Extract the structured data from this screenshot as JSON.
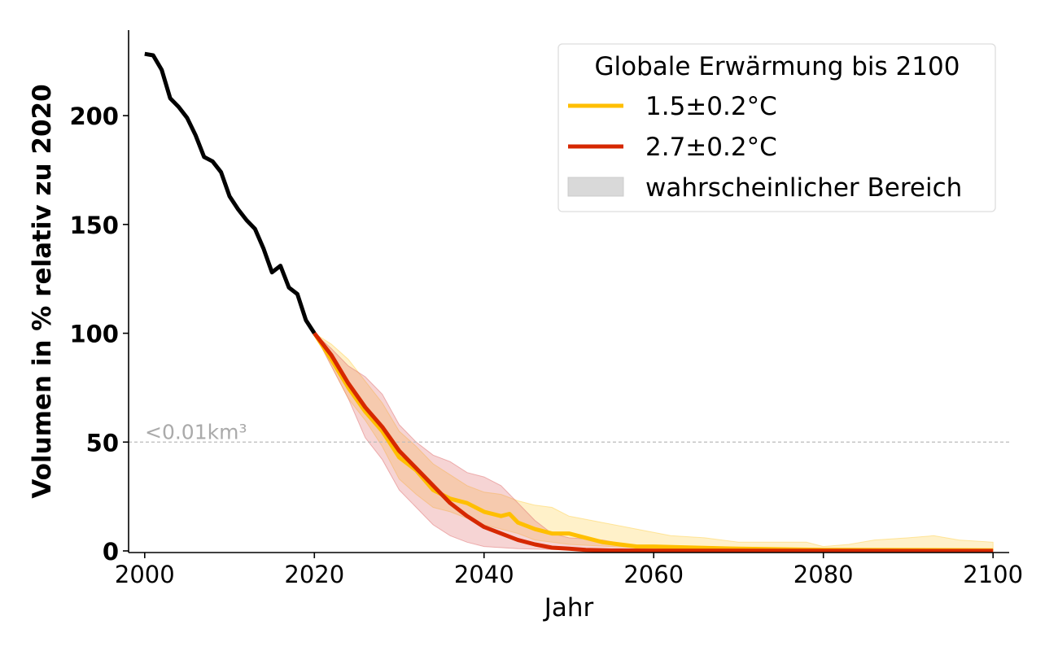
{
  "chart_data": {
    "type": "line",
    "xlabel": "Jahr",
    "ylabel": "Volumen in % relativ zu 2020",
    "xlim": [
      1998.1,
      2101.9
    ],
    "ylim": [
      -0.75,
      239.3
    ],
    "xticks": [
      2000,
      2020,
      2040,
      2060,
      2080,
      2100
    ],
    "yticks": [
      0,
      50,
      100,
      150,
      200
    ],
    "grid": false,
    "reference_line": {
      "y": 50,
      "label": "<0.01km³",
      "color": "#bbbbbb"
    },
    "legend": {
      "title": "Globale Erwärmung bis 2100",
      "placement": "top-right",
      "entries": [
        "1.5±0.2°C",
        "2.7±0.2°C",
        "wahrscheinlicher Bereich"
      ]
    },
    "historical": {
      "color": "#000000",
      "x": [
        2000,
        2001,
        2002,
        2003,
        2004,
        2005,
        2006,
        2007,
        2008,
        2009,
        2010,
        2011,
        2012,
        2013,
        2014,
        2015,
        2016,
        2017,
        2018,
        2019,
        2020
      ],
      "y": [
        228.4,
        227.7,
        221,
        208,
        204,
        199,
        191,
        181,
        179,
        174,
        163,
        157,
        152,
        148,
        139,
        128,
        131,
        121,
        118,
        106,
        100
      ]
    },
    "series": [
      {
        "name": "1.5±0.2°C",
        "color": "#FFBF00",
        "band_color": "#FFD24D",
        "x": [
          2020,
          2022,
          2024,
          2026,
          2028,
          2030,
          2032,
          2034,
          2036,
          2038,
          2040,
          2042,
          2043,
          2044,
          2046,
          2048,
          2050,
          2052,
          2054,
          2056,
          2058,
          2060,
          2065,
          2070,
          2080,
          2100
        ],
        "y": [
          100,
          88,
          75,
          64,
          55,
          43,
          37,
          28,
          24,
          22,
          18,
          16,
          17,
          13,
          10,
          8,
          8,
          6,
          4,
          3,
          2,
          2,
          1.5,
          1,
          0.5,
          0.3
        ],
        "upper": {
          "x": [
            2020,
            2022,
            2024,
            2026,
            2028,
            2030,
            2032,
            2034,
            2036,
            2038,
            2040,
            2042,
            2044,
            2046,
            2048,
            2050,
            2054,
            2058,
            2062,
            2066,
            2070,
            2078,
            2080,
            2083,
            2086,
            2090,
            2093,
            2096,
            2100
          ],
          "y": [
            100,
            95,
            88,
            78,
            68,
            55,
            48,
            40,
            35,
            30,
            27,
            26,
            23,
            21,
            20,
            16,
            13,
            10,
            7,
            6,
            4,
            4,
            2,
            3,
            5,
            6,
            7,
            5,
            4
          ]
        },
        "lower": {
          "x": [
            2020,
            2022,
            2024,
            2026,
            2028,
            2030,
            2032,
            2034,
            2036,
            2038,
            2040,
            2042,
            2044,
            2046,
            2048,
            2050,
            2055,
            2060,
            2100
          ],
          "y": [
            100,
            85,
            70,
            60,
            48,
            33,
            26,
            20,
            18,
            15,
            12,
            10,
            8,
            5,
            4,
            3,
            2,
            1,
            0.5
          ]
        }
      },
      {
        "name": "2.7±0.2°C",
        "color": "#D62800",
        "band_color": "#E07070",
        "x": [
          2020,
          2022,
          2024,
          2026,
          2028,
          2030,
          2032,
          2034,
          2036,
          2038,
          2040,
          2042,
          2044,
          2046,
          2048,
          2050,
          2052,
          2055,
          2060,
          2100
        ],
        "y": [
          100,
          90,
          77,
          66,
          57,
          46,
          38,
          30,
          22,
          16,
          11,
          8,
          5,
          3,
          1.5,
          1,
          0.5,
          0.2,
          0.1,
          0
        ],
        "upper": {
          "x": [
            2020,
            2022,
            2024,
            2026,
            2028,
            2030,
            2032,
            2034,
            2036,
            2038,
            2040,
            2042,
            2044,
            2046,
            2048,
            2050,
            2054,
            2058,
            2062,
            2100
          ],
          "y": [
            100,
            93,
            85,
            80,
            72,
            58,
            50,
            44,
            41,
            36,
            34,
            30,
            22,
            14,
            8,
            6,
            5,
            2,
            1,
            0.5
          ]
        },
        "lower": {
          "x": [
            2020,
            2022,
            2024,
            2026,
            2028,
            2030,
            2032,
            2034,
            2036,
            2038,
            2040,
            2044,
            2050,
            2100
          ],
          "y": [
            100,
            85,
            70,
            52,
            42,
            28,
            20,
            12,
            7,
            4,
            2,
            1,
            0.5,
            0
          ]
        }
      }
    ]
  }
}
